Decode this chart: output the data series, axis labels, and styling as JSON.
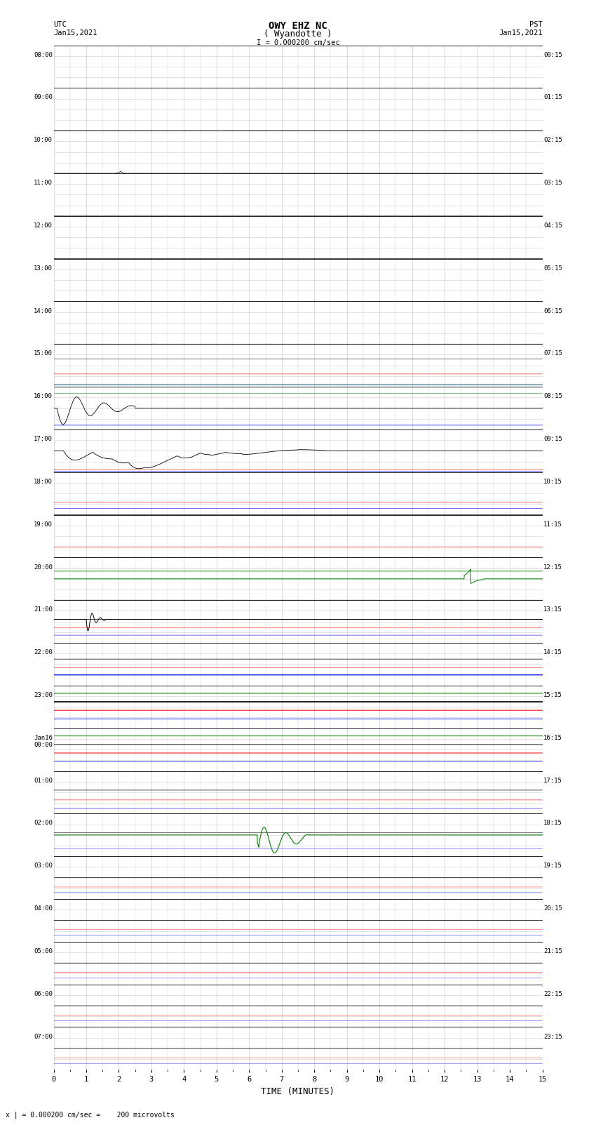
{
  "title_line1": "OWY EHZ NC",
  "title_line2": "( Wyandotte )",
  "title_scale": "I = 0.000200 cm/sec",
  "left_header": "UTC\nJan15,2021",
  "right_header": "PST\nJan15,2021",
  "xlabel": "TIME (MINUTES)",
  "footer": "x | = 0.000200 cm/sec =    200 microvolts",
  "num_rows": 24,
  "bg_color": "#ffffff",
  "grid_major_color": "#cccccc",
  "grid_minor_color": "#e0e0e0",
  "row_line_color": "#000000",
  "utc_labels": [
    "08:00",
    "09:00",
    "10:00",
    "11:00",
    "12:00",
    "13:00",
    "14:00",
    "15:00",
    "16:00",
    "17:00",
    "18:00",
    "19:00",
    "20:00",
    "21:00",
    "22:00",
    "23:00",
    "Jan16\n00:00",
    "01:00",
    "02:00",
    "03:00",
    "04:00",
    "05:00",
    "06:00",
    "07:00"
  ],
  "pst_labels": [
    "00:15",
    "01:15",
    "02:15",
    "03:15",
    "04:15",
    "05:15",
    "06:15",
    "07:15",
    "08:15",
    "09:15",
    "10:15",
    "11:15",
    "12:15",
    "13:15",
    "14:15",
    "15:15",
    "16:15",
    "17:15",
    "18:15",
    "19:15",
    "20:15",
    "21:15",
    "22:15",
    "23:15"
  ]
}
